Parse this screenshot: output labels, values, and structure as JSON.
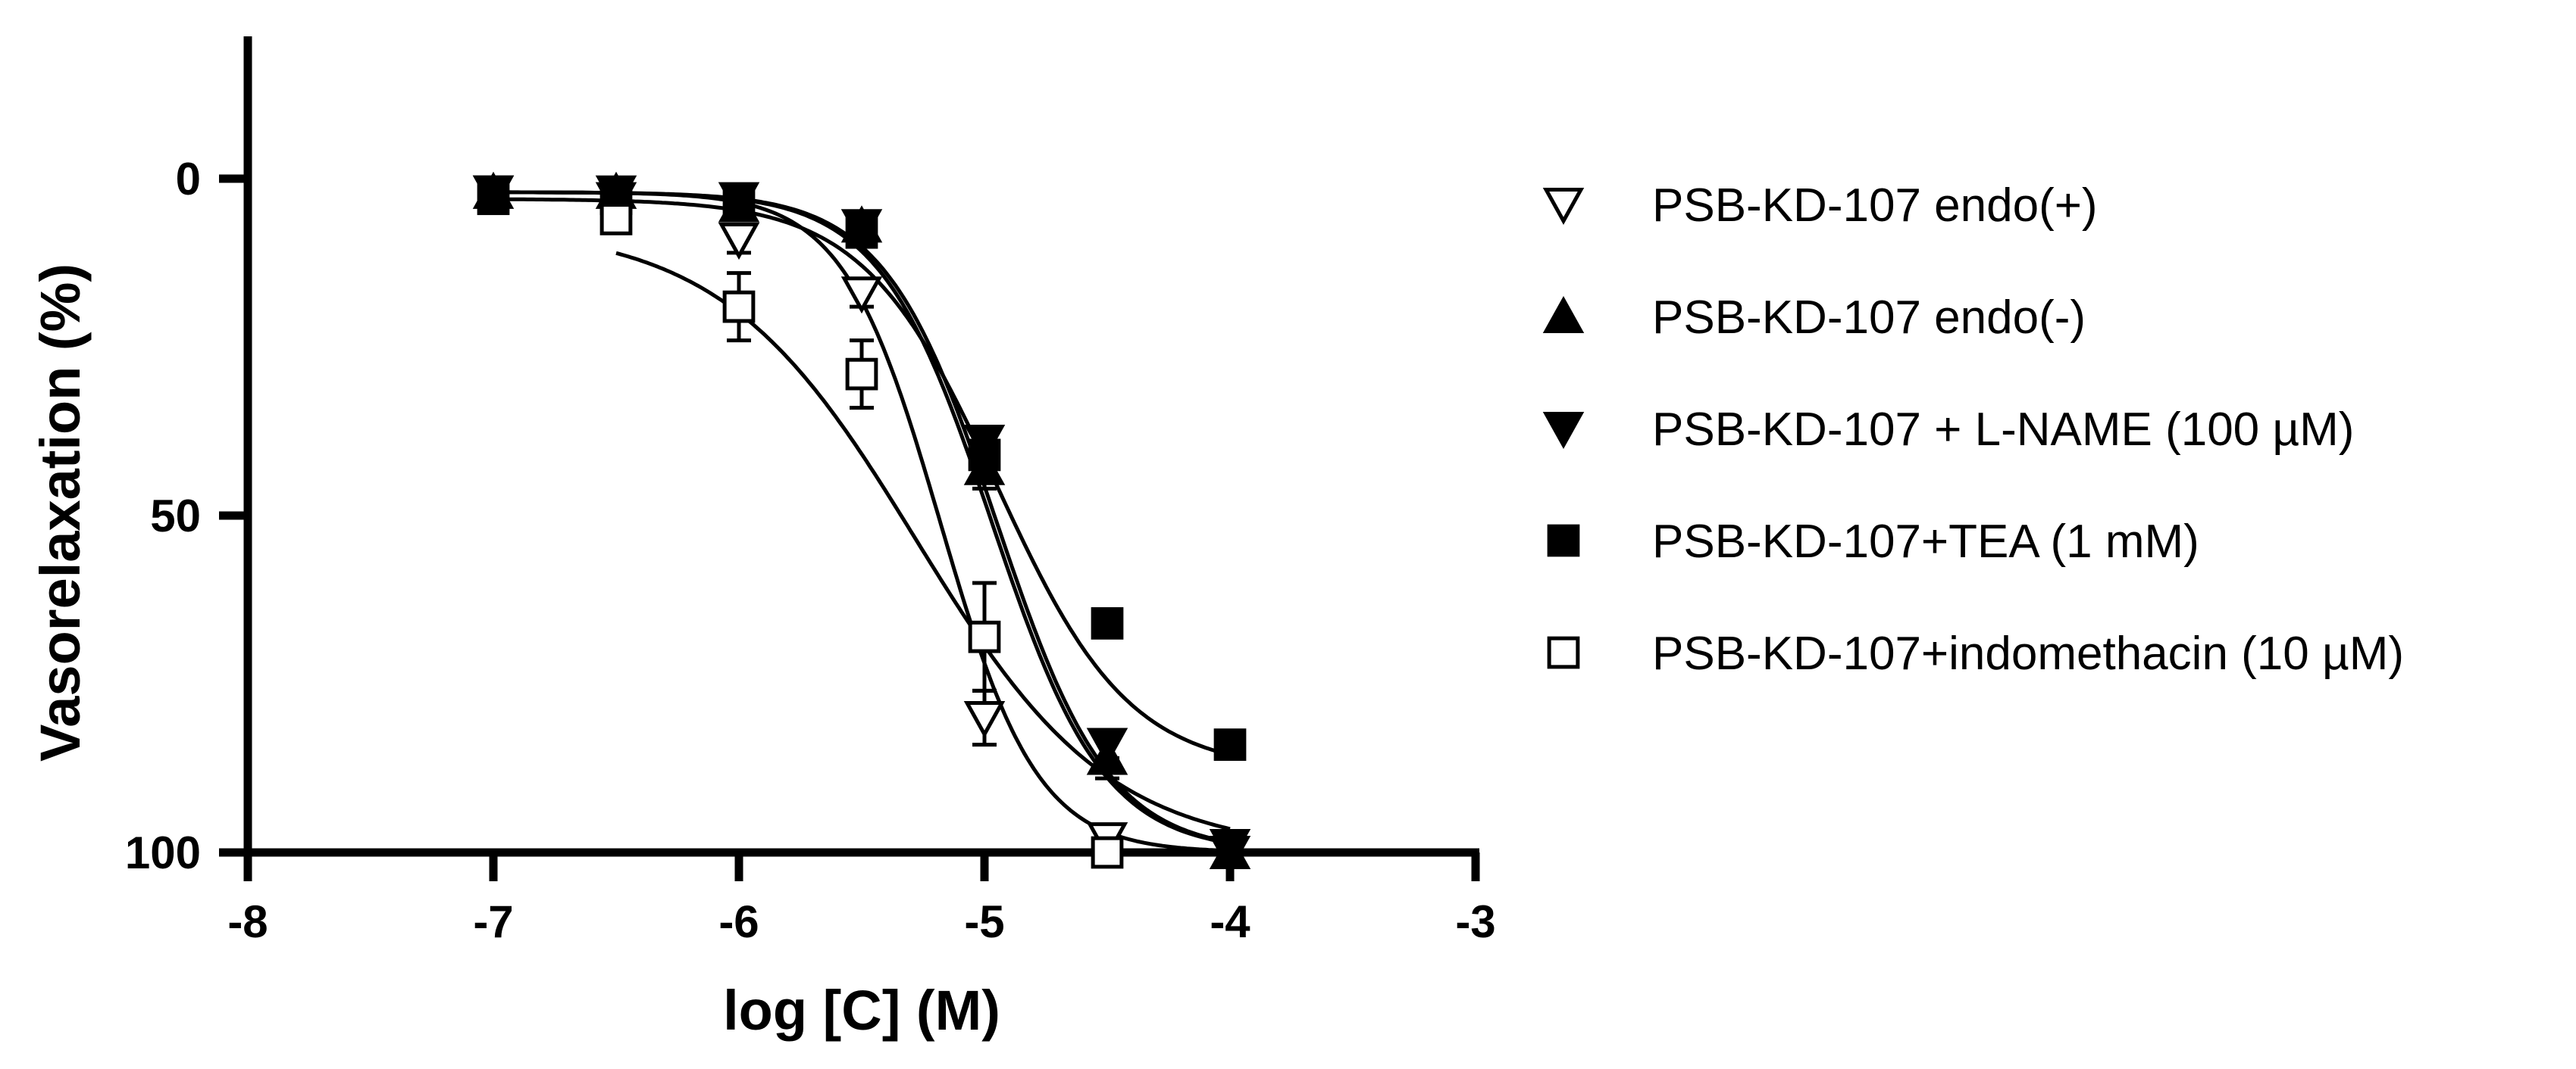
{
  "chart_data": {
    "type": "scatter",
    "xlabel": "log [C] (M)",
    "ylabel": "Vasorelaxation (%)",
    "xlim": [
      -8,
      -3
    ],
    "ylim": [
      0,
      100
    ],
    "y_inverted": true,
    "x_ticks": [
      "-8",
      "-7",
      "-6",
      "-5",
      "-4",
      "-3"
    ],
    "y_ticks": [
      "0",
      "50",
      "100"
    ],
    "legend_position": "right",
    "grid": false,
    "series": [
      {
        "name": "PSB-KD-107 endo(+)",
        "marker": "triangle-down-open",
        "x": [
          -7,
          -6.5,
          -6,
          -5.5,
          -5,
          -4.5,
          -4
        ],
        "y": [
          2,
          3,
          9,
          17,
          80,
          98,
          100
        ],
        "err": [
          0,
          0,
          2,
          2,
          4,
          1,
          0
        ],
        "fit": {
          "top": 2,
          "bottom": 100,
          "logEC50": -5.18,
          "hill": 2.2
        }
      },
      {
        "name": "PSB-KD-107 endo(-)",
        "marker": "triangle-up-filled",
        "x": [
          -7,
          -6.5,
          -6,
          -5.5,
          -5,
          -4.5,
          -4
        ],
        "y": [
          2,
          2,
          4,
          7,
          43,
          86,
          100
        ],
        "err": [
          0,
          0,
          1,
          1,
          3,
          3,
          1
        ],
        "fit": {
          "top": 2,
          "bottom": 100,
          "logEC50": -4.95,
          "hill": 1.9
        }
      },
      {
        "name": "PSB-KD-107 + L-NAME (100 µM)",
        "marker": "triangle-down-filled",
        "x": [
          -7,
          -6.5,
          -6,
          -5.5,
          -5,
          -4.5,
          -4
        ],
        "y": [
          2,
          2,
          3,
          7,
          39,
          84,
          99
        ],
        "err": [
          0,
          0,
          1,
          1,
          2,
          2,
          1
        ],
        "fit": {
          "top": 2,
          "bottom": 100,
          "logEC50": -4.97,
          "hill": 1.9
        }
      },
      {
        "name": "PSB-KD-107+TEA (1 mM)",
        "marker": "square-filled",
        "x": [
          -7,
          -6.5,
          -6,
          -5.5,
          -5,
          -4.5,
          -4
        ],
        "y": [
          3,
          3,
          4,
          8,
          41,
          66,
          84
        ],
        "err": [
          0,
          0,
          0,
          1,
          2,
          1,
          1
        ],
        "fit": {
          "top": 3,
          "bottom": 88,
          "logEC50": -4.95,
          "hill": 1.6
        }
      },
      {
        "name": "PSB-KD-107+indomethacin (10 µM)",
        "marker": "square-open",
        "x": [
          -6.5,
          -6,
          -5.5,
          -5,
          -4.5
        ],
        "y": [
          6,
          19,
          29,
          68,
          100
        ],
        "err": [
          1,
          5,
          5,
          8,
          1
        ],
        "fit": {
          "top": 7,
          "bottom": 100,
          "logEC50": -5.28,
          "hill": 1.1,
          "xmin": -6.5
        }
      }
    ]
  }
}
